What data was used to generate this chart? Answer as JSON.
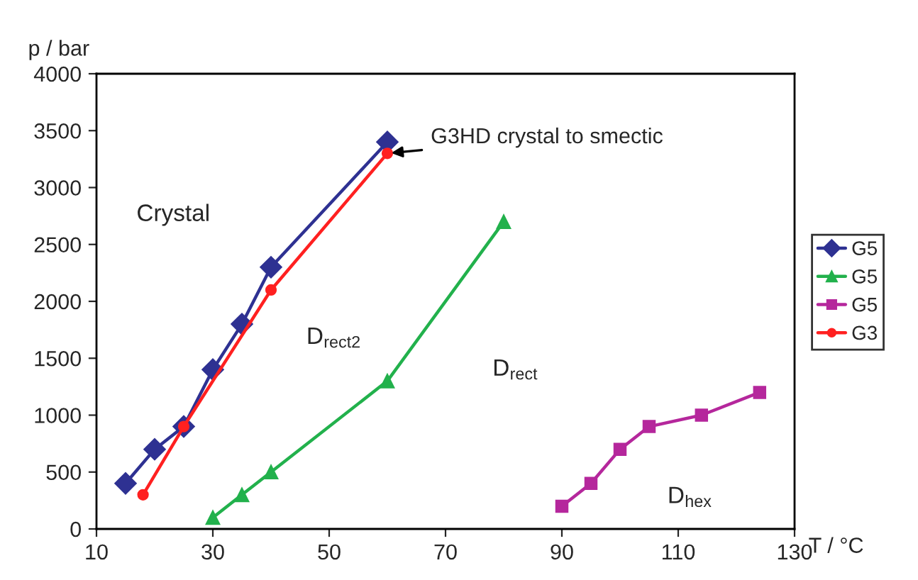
{
  "chart_data": {
    "type": "line",
    "xlabel": "T / °C",
    "ylabel": "p / bar",
    "xlim": [
      10,
      130
    ],
    "xticks": [
      10,
      30,
      50,
      70,
      90,
      110,
      130
    ],
    "ylim": [
      0,
      4000
    ],
    "yticks": [
      0,
      500,
      1000,
      1500,
      2000,
      2500,
      3000,
      3500,
      4000
    ],
    "grid": false,
    "legend": "right",
    "series": [
      {
        "name": "G5",
        "color": "#2e3192",
        "marker": "diamond",
        "x": [
          15,
          20,
          25,
          30,
          35,
          40,
          60
        ],
        "values": [
          400,
          700,
          900,
          1400,
          1800,
          2300,
          3400
        ]
      },
      {
        "name": "G5",
        "color": "#22b14c",
        "marker": "triangle",
        "x": [
          30,
          35,
          40,
          60,
          80
        ],
        "values": [
          100,
          300,
          500,
          1300,
          2700
        ]
      },
      {
        "name": "G5",
        "color": "#b5279c",
        "marker": "square",
        "x": [
          90,
          95,
          100,
          105,
          114,
          124
        ],
        "values": [
          200,
          400,
          700,
          900,
          1000,
          1200
        ]
      },
      {
        "name": "G3",
        "color": "#ff2020",
        "marker": "circle",
        "x": [
          18,
          25,
          40,
          60
        ],
        "values": [
          300,
          900,
          2100,
          3300
        ]
      }
    ],
    "annotations": [
      {
        "text": "G3HD crystal to smectic",
        "x": 60,
        "y": 3300
      },
      "Crystal",
      "D$_{rect2}$",
      "D$_{rect}$",
      "D$_{hex}$"
    ]
  }
}
